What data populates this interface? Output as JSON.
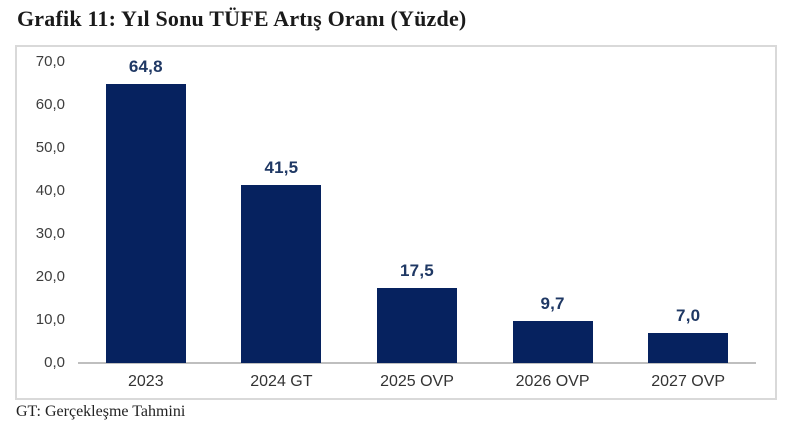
{
  "page": {
    "title": "Grafik 11: Yıl Sonu TÜFE Artış Oranı (Yüzde)",
    "footnote": "GT: Gerçekleşme Tahmini"
  },
  "chart_data": {
    "type": "bar",
    "title": "Grafik 11: Yıl Sonu TÜFE Artış Oranı (Yüzde)",
    "categories": [
      "2023",
      "2024 GT",
      "2025 OVP",
      "2026 OVP",
      "2027 OVP"
    ],
    "values": [
      64.8,
      41.5,
      17.5,
      9.7,
      7.0
    ],
    "value_labels": [
      "64,8",
      "41,5",
      "17,5",
      "9,7",
      "7,0"
    ],
    "ytick_values": [
      0,
      10,
      20,
      30,
      40,
      50,
      60,
      70
    ],
    "ytick_labels": [
      "0,0",
      "10,0",
      "20,0",
      "30,0",
      "40,0",
      "50,0",
      "60,0",
      "70,0"
    ],
    "ylim": [
      0,
      70
    ],
    "xlabel": "",
    "ylabel": "",
    "grid": false,
    "legend": "none",
    "bar_color": "#06225f",
    "value_label_color": "#1f3864",
    "footnote": "GT: Gerçekleşme Tahmini"
  }
}
